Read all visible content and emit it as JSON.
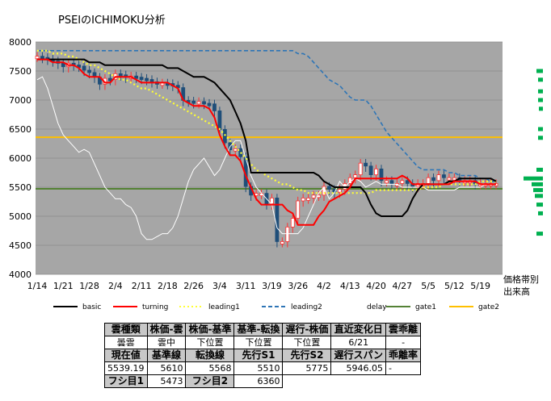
{
  "chart_data": {
    "type": "line",
    "title": "PSEIのICHIMOKU分析",
    "ylim": [
      4000,
      8000
    ],
    "yticks": [
      4000,
      4500,
      5000,
      5500,
      6000,
      6500,
      7000,
      7500,
      8000
    ],
    "xticks": [
      "1/14",
      "1/21",
      "1/28",
      "2/4",
      "2/11",
      "2/18",
      "2/26",
      "3/4",
      "3/11",
      "3/19",
      "3/26",
      "4/2",
      "4/13",
      "4/20",
      "4/27",
      "5/5",
      "5/12",
      "5/19"
    ],
    "xtick_index": [
      0,
      5,
      10,
      15,
      20,
      25,
      30,
      35,
      40,
      45,
      50,
      55,
      60,
      65,
      70,
      75,
      80,
      85
    ],
    "volume_profile_label": "価格帯別\n出来高",
    "legend": [
      {
        "key": "basic",
        "label": "basic",
        "color": "#000000",
        "style": "solid"
      },
      {
        "key": "turning",
        "label": "turning",
        "color": "#ff0000",
        "style": "solid"
      },
      {
        "key": "leading1",
        "label": "leading1",
        "color": "#ffff33",
        "style": "dotted"
      },
      {
        "key": "leading2",
        "label": "leading2",
        "color": "#2e75b6",
        "style": "dashed"
      },
      {
        "key": "delay",
        "label": "delay",
        "color": "#ffffff",
        "style": "solid"
      },
      {
        "key": "gate1",
        "label": "gate1",
        "color": "#548235",
        "style": "solid"
      },
      {
        "key": "gate2",
        "label": "gate2",
        "color": "#ffc000",
        "style": "solid"
      }
    ],
    "hlines": {
      "gate1": 5473,
      "gate2": 6360
    },
    "series": {
      "basic": [
        7700,
        7700,
        7700,
        7700,
        7700,
        7700,
        7700,
        7700,
        7700,
        7700,
        7650,
        7650,
        7650,
        7600,
        7600,
        7600,
        7600,
        7600,
        7600,
        7600,
        7600,
        7600,
        7600,
        7600,
        7600,
        7550,
        7550,
        7550,
        7500,
        7450,
        7400,
        7400,
        7400,
        7350,
        7300,
        7200,
        7100,
        7000,
        6800,
        6600,
        6300,
        5750,
        5750,
        5750,
        5750,
        5750,
        5750,
        5750,
        5750,
        5750,
        5750,
        5750,
        5750,
        5750,
        5700,
        5600,
        5550,
        5500,
        5500,
        5500,
        5500,
        5500,
        5500,
        5400,
        5200,
        5050,
        5000,
        5000,
        5000,
        5000,
        5000,
        5100,
        5300,
        5450,
        5550,
        5550,
        5550,
        5550,
        5550,
        5600,
        5600,
        5650,
        5650,
        5650,
        5650,
        5650,
        5650,
        5650,
        5600
      ],
      "turning": [
        7700,
        7700,
        7700,
        7650,
        7650,
        7650,
        7600,
        7600,
        7550,
        7450,
        7400,
        7400,
        7400,
        7300,
        7300,
        7400,
        7400,
        7400,
        7400,
        7350,
        7300,
        7300,
        7300,
        7300,
        7300,
        7300,
        7250,
        7200,
        7000,
        6950,
        6900,
        6900,
        6900,
        6850,
        6700,
        6400,
        6200,
        6050,
        6050,
        5950,
        5700,
        5500,
        5300,
        5200,
        5200,
        5200,
        5200,
        5200,
        5100,
        5050,
        4850,
        4850,
        4850,
        4850,
        5000,
        5100,
        5250,
        5300,
        5350,
        5400,
        5500,
        5650,
        5650,
        5650,
        5650,
        5650,
        5650,
        5650,
        5650,
        5650,
        5700,
        5650,
        5550,
        5550,
        5550,
        5550,
        5550,
        5550,
        5550,
        5550,
        5600,
        5600,
        5600,
        5600,
        5600,
        5550,
        5550,
        5550,
        5550
      ],
      "leading1": [
        7850,
        7850,
        7850,
        7800,
        7800,
        7800,
        7750,
        7750,
        7700,
        7650,
        7600,
        7600,
        7550,
        7500,
        7450,
        7400,
        7350,
        7350,
        7300,
        7250,
        7200,
        7200,
        7150,
        7100,
        7050,
        7000,
        6950,
        6900,
        6850,
        6800,
        6750,
        6700,
        6650,
        6600,
        6550,
        6500,
        6400,
        6300,
        6200,
        6100,
        6000,
        5900,
        5800,
        5750,
        5700,
        5650,
        5600,
        5550,
        5550,
        5500,
        5450,
        5450,
        5400,
        5400,
        5400,
        5400,
        5400,
        5400,
        5400,
        5400,
        5400,
        5400,
        5400,
        5400,
        5400,
        5450,
        5450,
        5450,
        5450,
        5450,
        5450,
        5450,
        5450,
        5450,
        5500,
        5500,
        5500,
        5500,
        5550,
        5550,
        5550,
        5550,
        5550,
        5550,
        5550,
        5600,
        5600,
        5600,
        5600
      ],
      "leading2": [
        7850,
        7850,
        7850,
        7850,
        7850,
        7850,
        7850,
        7850,
        7850,
        7850,
        7850,
        7850,
        7850,
        7850,
        7850,
        7850,
        7850,
        7850,
        7850,
        7850,
        7850,
        7850,
        7850,
        7850,
        7850,
        7850,
        7850,
        7850,
        7850,
        7850,
        7850,
        7850,
        7850,
        7850,
        7850,
        7850,
        7850,
        7850,
        7850,
        7850,
        7850,
        7850,
        7850,
        7850,
        7850,
        7850,
        7850,
        7850,
        7850,
        7850,
        7800,
        7800,
        7750,
        7650,
        7550,
        7450,
        7350,
        7300,
        7250,
        7150,
        7050,
        7000,
        7000,
        7000,
        6900,
        6750,
        6600,
        6450,
        6350,
        6250,
        6150,
        6050,
        5950,
        5850,
        5800,
        5800,
        5800,
        5800,
        5800,
        5750,
        5750,
        5700,
        5700,
        5700,
        5700,
        5650,
        5650,
        5600,
        5600
      ],
      "delay": [
        7350,
        7400,
        7200,
        6900,
        6600,
        6400,
        6300,
        6200,
        6100,
        6150,
        6100,
        5900,
        5700,
        5500,
        5400,
        5300,
        5300,
        5200,
        5150,
        5000,
        4700,
        4600,
        4600,
        4650,
        4700,
        4700,
        4800,
        5000,
        5300,
        5600,
        5800,
        5900,
        6000,
        5850,
        5700,
        5800,
        6000,
        6200,
        6300,
        6300,
        6000,
        5700,
        5500,
        5400,
        5300,
        5200,
        4800,
        4700,
        4700,
        4700,
        4700,
        4800,
        5000,
        5200,
        5400,
        5500,
        5300,
        5400,
        5600,
        5500,
        5600,
        5650,
        5600,
        5500,
        5550,
        5600,
        5550,
        5550,
        5550,
        5550,
        5500,
        5500,
        5500,
        5500,
        5500,
        5450,
        5450,
        5450,
        5450,
        5450,
        5450,
        5500,
        5500,
        5500,
        5500,
        5500,
        5550,
        5550,
        5550
      ],
      "close": [
        7740,
        7720,
        7690,
        7660,
        7620,
        7560,
        7620,
        7590,
        7570,
        7500,
        7460,
        7380,
        7260,
        7360,
        7340,
        7440,
        7420,
        7380,
        7400,
        7380,
        7360,
        7340,
        7300,
        7280,
        7280,
        7270,
        7240,
        7200,
        6980,
        6970,
        6940,
        6960,
        6930,
        6920,
        6800,
        6480,
        6250,
        6130,
        6150,
        6010,
        5500,
        5350,
        5380,
        5380,
        5200,
        5300,
        4550,
        4550,
        4800,
        4950,
        5250,
        5300,
        5300,
        5350,
        5350,
        5500,
        5450,
        5400,
        5450,
        5550,
        5650,
        5700,
        5900,
        5850,
        5700,
        5800,
        5600,
        5600,
        5550,
        5550,
        5600,
        5550,
        5500,
        5550,
        5550,
        5650,
        5600,
        5700,
        5650,
        5650,
        5650,
        5600,
        5600,
        5600,
        5550,
        5550,
        5550,
        5550,
        5550
      ],
      "profile": [
        {
          "y": 7500,
          "w": 8
        },
        {
          "y": 7350,
          "w": 6
        },
        {
          "y": 7150,
          "w": 6
        },
        {
          "y": 7000,
          "w": 6
        },
        {
          "y": 6850,
          "w": 5
        },
        {
          "y": 6500,
          "w": 6
        },
        {
          "y": 6350,
          "w": 6
        },
        {
          "y": 5800,
          "w": 8
        },
        {
          "y": 5650,
          "w": 24
        },
        {
          "y": 5550,
          "w": 14
        },
        {
          "y": 5450,
          "w": 12
        },
        {
          "y": 5350,
          "w": 10
        },
        {
          "y": 5200,
          "w": 8
        },
        {
          "y": 5050,
          "w": 6
        },
        {
          "y": 4700,
          "w": 8
        }
      ]
    }
  },
  "table": {
    "row1_headers": [
      "雲種類",
      "株価-雲",
      "株価-基準",
      "基準-転換",
      "遅行-株価",
      "直近変化日",
      "雲乖離"
    ],
    "row2_values": [
      "曇雲",
      "雲中",
      "下位置",
      "下位置",
      "下位置",
      "6/21",
      "-"
    ],
    "row3_headers": [
      "現在値",
      "基準線",
      "転換線",
      "先行S1",
      "先行S2",
      "遅行スパン",
      "乖離率"
    ],
    "row4_values": [
      "5539.19",
      "5610",
      "5568",
      "5510",
      "5775",
      "5946.05",
      "-"
    ],
    "row5": {
      "label1": "フシ目1",
      "value1": "5473",
      "label2": "フシ目2",
      "value2": "6360"
    }
  }
}
